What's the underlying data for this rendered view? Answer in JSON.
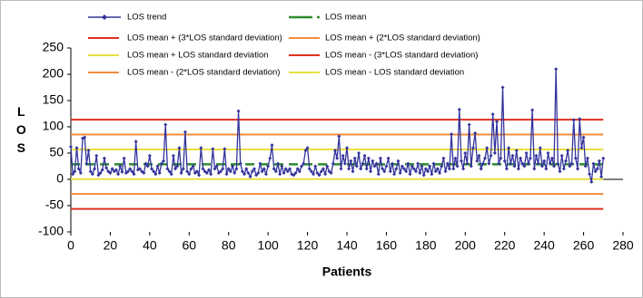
{
  "chart_data": {
    "type": "line",
    "x_label": "Patients",
    "y_label": "LOS",
    "xlim": [
      0,
      280
    ],
    "xticks": [
      0,
      20,
      40,
      60,
      80,
      100,
      120,
      140,
      160,
      180,
      200,
      220,
      240,
      260,
      280
    ],
    "ylim": [
      -100,
      250
    ],
    "yticks": [
      -100,
      -50,
      0,
      50,
      100,
      150,
      200,
      250
    ],
    "x": [
      0,
      1,
      2,
      3,
      4,
      5,
      6,
      7,
      8,
      9,
      10,
      11,
      12,
      13,
      14,
      15,
      16,
      17,
      18,
      19,
      20,
      21,
      22,
      23,
      24,
      25,
      26,
      27,
      28,
      29,
      30,
      31,
      32,
      33,
      34,
      35,
      36,
      37,
      38,
      39,
      40,
      41,
      42,
      43,
      44,
      45,
      46,
      47,
      48,
      49,
      50,
      51,
      52,
      53,
      54,
      55,
      56,
      57,
      58,
      59,
      60,
      61,
      62,
      63,
      64,
      65,
      66,
      67,
      68,
      69,
      70,
      71,
      72,
      73,
      74,
      75,
      76,
      77,
      78,
      79,
      80,
      81,
      82,
      83,
      84,
      85,
      86,
      87,
      88,
      89,
      90,
      91,
      92,
      93,
      94,
      95,
      96,
      97,
      98,
      99,
      100,
      101,
      102,
      103,
      104,
      105,
      106,
      107,
      108,
      109,
      110,
      111,
      112,
      113,
      114,
      115,
      116,
      117,
      118,
      119,
      120,
      121,
      122,
      123,
      124,
      125,
      126,
      127,
      128,
      129,
      130,
      131,
      132,
      133,
      134,
      135,
      136,
      137,
      138,
      139,
      140,
      141,
      142,
      143,
      144,
      145,
      146,
      147,
      148,
      149,
      150,
      151,
      152,
      153,
      154,
      155,
      156,
      157,
      158,
      159,
      160,
      161,
      162,
      163,
      164,
      165,
      166,
      167,
      168,
      169,
      170,
      171,
      172,
      173,
      174,
      175,
      176,
      177,
      178,
      179,
      180,
      181,
      182,
      183,
      184,
      185,
      186,
      187,
      188,
      189,
      190,
      191,
      192,
      193,
      194,
      195,
      196,
      197,
      198,
      199,
      200,
      201,
      202,
      203,
      204,
      205,
      206,
      207,
      208,
      209,
      210,
      211,
      212,
      213,
      214,
      215,
      216,
      217,
      218,
      219,
      220,
      221,
      222,
      223,
      224,
      225,
      226,
      227,
      228,
      229,
      230,
      231,
      232,
      233,
      234,
      235,
      236,
      237,
      238,
      239,
      240,
      241,
      242,
      243,
      244,
      245,
      246,
      247,
      248,
      249,
      250,
      251,
      252,
      253,
      254,
      255,
      256,
      257,
      258,
      259,
      260,
      261,
      262,
      263,
      264,
      265,
      266,
      267,
      268,
      269,
      270
    ],
    "series": [
      {
        "name": "LOS trend",
        "color": "#33339c",
        "values": [
          62,
          10,
          15,
          60,
          20,
          12,
          78,
          80,
          30,
          55,
          15,
          10,
          20,
          45,
          8,
          12,
          18,
          40,
          22,
          15,
          12,
          20,
          15,
          18,
          10,
          25,
          14,
          40,
          12,
          15,
          20,
          15,
          10,
          72,
          18,
          20,
          15,
          12,
          30,
          25,
          45,
          20,
          15,
          10,
          25,
          12,
          30,
          35,
          104,
          20,
          15,
          10,
          45,
          20,
          25,
          60,
          12,
          20,
          90,
          15,
          10,
          20,
          25,
          12,
          15,
          8,
          60,
          20,
          15,
          12,
          18,
          10,
          58,
          20,
          25,
          12,
          15,
          20,
          58,
          10,
          20,
          15,
          25,
          12,
          20,
          130,
          30,
          15,
          10,
          20,
          12,
          5,
          15,
          20,
          8,
          12,
          30,
          15,
          20,
          10,
          25,
          40,
          65,
          20,
          15,
          30,
          10,
          25,
          12,
          20,
          15,
          20,
          10,
          8,
          12,
          20,
          15,
          25,
          30,
          55,
          60,
          20,
          15,
          10,
          25,
          12,
          8,
          15,
          20,
          10,
          25,
          15,
          12,
          30,
          55,
          40,
          82,
          20,
          45,
          30,
          60,
          20,
          35,
          15,
          40,
          25,
          50,
          20,
          30,
          45,
          20,
          40,
          15,
          35,
          25,
          30,
          10,
          40,
          20,
          15,
          25,
          40,
          15,
          30,
          10,
          20,
          35,
          12,
          25,
          20,
          15,
          30,
          10,
          25,
          20,
          15,
          30,
          12,
          25,
          8,
          20,
          15,
          25,
          10,
          30,
          15,
          20,
          12,
          25,
          40,
          15,
          30,
          20,
          86,
          20,
          40,
          25,
          133,
          35,
          20,
          50,
          30,
          104,
          25,
          60,
          88,
          35,
          45,
          20,
          30,
          40,
          60,
          30,
          45,
          124,
          50,
          110,
          30,
          40,
          175,
          35,
          20,
          60,
          30,
          45,
          25,
          55,
          20,
          40,
          30,
          25,
          50,
          30,
          40,
          132,
          20,
          45,
          30,
          60,
          25,
          35,
          20,
          50,
          30,
          40,
          25,
          210,
          30,
          15,
          45,
          20,
          35,
          55,
          25,
          30,
          113,
          40,
          20,
          115,
          60,
          80,
          25,
          40,
          10,
          -5,
          30,
          15,
          20,
          35,
          5,
          40
        ]
      }
    ],
    "reference_lines": [
      {
        "name": "LOS mean",
        "color": "#2e8b2e",
        "value": 28.7,
        "dashed": true
      },
      {
        "name": "LOS mean + (3*LOS standard deviation)",
        "color": "#e03020",
        "value": 113.6
      },
      {
        "name": "LOS mean + (2*LOS standard deviation)",
        "color": "#f08c3c",
        "value": 85.3
      },
      {
        "name": "LOS mean + LOS standard deviation",
        "color": "#e8e040",
        "value": 57
      },
      {
        "name": "LOS mean - (3*LOS standard deviation)",
        "color": "#e03020",
        "value": -56.2
      },
      {
        "name": "LOS mean - (2*LOS standard deviation)",
        "color": "#f08c3c",
        "value": -27.9
      },
      {
        "name": "LOS mean - LOS standard deviation",
        "color": "#e8e040",
        "value": 0.4
      }
    ]
  }
}
